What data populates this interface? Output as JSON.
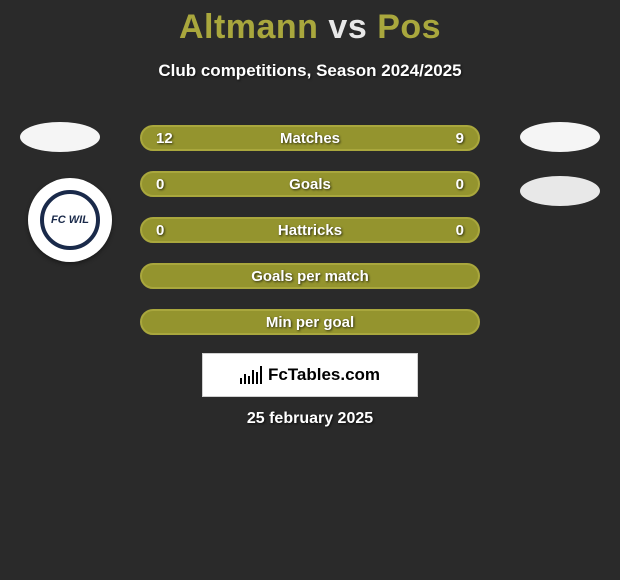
{
  "title": {
    "player1": "Altmann",
    "vs": "vs",
    "player2": "Pos"
  },
  "subtitle": "Club competitions, Season 2024/2025",
  "rows": [
    {
      "label": "Matches",
      "left": "12",
      "right": "9",
      "has_values": true
    },
    {
      "label": "Goals",
      "left": "0",
      "right": "0",
      "has_values": true
    },
    {
      "label": "Hattricks",
      "left": "0",
      "right": "0",
      "has_values": true
    },
    {
      "label": "Goals per match",
      "left": "",
      "right": "",
      "has_values": false
    },
    {
      "label": "Min per goal",
      "left": "",
      "right": "",
      "has_values": false
    }
  ],
  "badge_left_text": "FC WIL",
  "brand": "FcTables.com",
  "date": "25 february 2025",
  "colors": {
    "background": "#2a2a2a",
    "accent": "#a9a73d",
    "row_fill": "#94942e",
    "text": "#ffffff"
  }
}
